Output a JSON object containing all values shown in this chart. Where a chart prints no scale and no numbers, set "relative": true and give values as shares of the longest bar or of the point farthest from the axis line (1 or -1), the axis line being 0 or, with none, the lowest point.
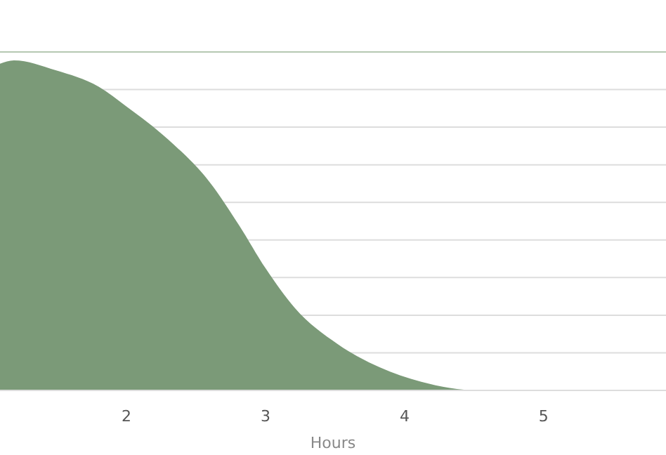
{
  "chart_data": {
    "type": "area",
    "relative": true,
    "xlabel": "Hours",
    "x": [
      1.09,
      1.19,
      1.49,
      1.8,
      2.0,
      2.3,
      2.6,
      2.81,
      3.0,
      3.21,
      3.52,
      3.82,
      4.12,
      4.53,
      5.88
    ],
    "series": [
      {
        "color": "#7b9a78",
        "values": [
          0.99,
          1,
          0.97,
          0.92,
          0.86,
          0.76,
          0.63,
          0.5,
          0.37,
          0.25,
          0.14,
          0.07,
          0.026,
          0,
          0
        ]
      }
    ],
    "xlim": [
      1.09,
      5.88
    ],
    "xticks": [
      2,
      3,
      4,
      5
    ],
    "grid": "y",
    "tick_labels": "x"
  }
}
